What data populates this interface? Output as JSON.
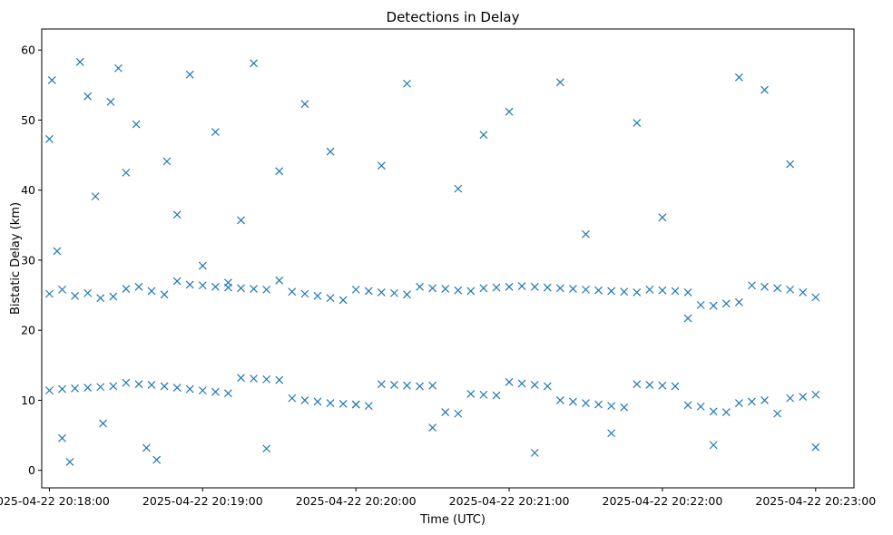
{
  "chart_data": {
    "type": "scatter",
    "title": "Detections in Delay",
    "xlabel": "Time (UTC)",
    "ylabel": "Bistatic Delay (km)",
    "marker": "x",
    "color": "#1f77b4",
    "xlim": [
      "2025-04-22 20:17:57",
      "2025-04-22 20:23:15"
    ],
    "ylim": [
      -2.5,
      63
    ],
    "xticks": [
      {
        "t": "2025-04-22 20:18:00",
        "label": "2025-04-22 20:18:00"
      },
      {
        "t": "2025-04-22 20:19:00",
        "label": "2025-04-22 20:19:00"
      },
      {
        "t": "2025-04-22 20:20:00",
        "label": "2025-04-22 20:20:00"
      },
      {
        "t": "2025-04-22 20:21:00",
        "label": "2025-04-22 20:21:00"
      },
      {
        "t": "2025-04-22 20:22:00",
        "label": "2025-04-22 20:22:00"
      },
      {
        "t": "2025-04-22 20:23:00",
        "label": "2025-04-22 20:23:00"
      }
    ],
    "yticks": [
      0,
      10,
      20,
      30,
      40,
      50,
      60
    ],
    "grid": false,
    "series": [
      {
        "name": "",
        "x": [
          "2025-04-22 20:18:00",
          "2025-04-22 20:18:01",
          "2025-04-22 20:18:03",
          "2025-04-22 20:18:05",
          "2025-04-22 20:18:08",
          "2025-04-22 20:18:12",
          "2025-04-22 20:18:15",
          "2025-04-22 20:18:18",
          "2025-04-22 20:18:21",
          "2025-04-22 20:18:24",
          "2025-04-22 20:18:27",
          "2025-04-22 20:18:30",
          "2025-04-22 20:18:34",
          "2025-04-22 20:18:38",
          "2025-04-22 20:18:42",
          "2025-04-22 20:18:46",
          "2025-04-22 20:18:50",
          "2025-04-22 20:18:55",
          "2025-04-22 20:19:00",
          "2025-04-22 20:19:05",
          "2025-04-22 20:19:10",
          "2025-04-22 20:19:15",
          "2025-04-22 20:19:20",
          "2025-04-22 20:19:25",
          "2025-04-22 20:19:30",
          "2025-04-22 20:19:40",
          "2025-04-22 20:19:50",
          "2025-04-22 20:20:00",
          "2025-04-22 20:20:10",
          "2025-04-22 20:20:20",
          "2025-04-22 20:20:30",
          "2025-04-22 20:20:40",
          "2025-04-22 20:20:50",
          "2025-04-22 20:21:00",
          "2025-04-22 20:21:10",
          "2025-04-22 20:21:20",
          "2025-04-22 20:21:30",
          "2025-04-22 20:21:40",
          "2025-04-22 20:21:50",
          "2025-04-22 20:22:00",
          "2025-04-22 20:22:10",
          "2025-04-22 20:22:20",
          "2025-04-22 20:22:30",
          "2025-04-22 20:22:40",
          "2025-04-22 20:22:50",
          "2025-04-22 20:23:00"
        ],
        "y": [
          47.3,
          55.7,
          31.3,
          4.6,
          1.2,
          58.3,
          53.4,
          39.1,
          6.7,
          52.6,
          57.4,
          42.5,
          49.4,
          3.2,
          1.5,
          44.1,
          36.5,
          56.5,
          29.2,
          48.3,
          26.8,
          35.7,
          58.1,
          3.1,
          42.7,
          52.3,
          45.5,
          9.4,
          43.5,
          55.2,
          6.1,
          40.2,
          47.9,
          51.2,
          2.5,
          55.4,
          33.7,
          5.3,
          49.6,
          36.1,
          21.7,
          3.6,
          56.1,
          54.3,
          43.7,
          3.3
        ]
      },
      {
        "name": "",
        "x": [
          "2025-04-22 20:18:00",
          "2025-04-22 20:18:05",
          "2025-04-22 20:18:10",
          "2025-04-22 20:18:15",
          "2025-04-22 20:18:20",
          "2025-04-22 20:18:25",
          "2025-04-22 20:18:30",
          "2025-04-22 20:18:35",
          "2025-04-22 20:18:40",
          "2025-04-22 20:18:45",
          "2025-04-22 20:18:50",
          "2025-04-22 20:18:55",
          "2025-04-22 20:19:00",
          "2025-04-22 20:19:05",
          "2025-04-22 20:19:10",
          "2025-04-22 20:19:15",
          "2025-04-22 20:19:20",
          "2025-04-22 20:19:25",
          "2025-04-22 20:19:30",
          "2025-04-22 20:19:35",
          "2025-04-22 20:19:40",
          "2025-04-22 20:19:45",
          "2025-04-22 20:19:50",
          "2025-04-22 20:19:55",
          "2025-04-22 20:20:00",
          "2025-04-22 20:20:05",
          "2025-04-22 20:20:10",
          "2025-04-22 20:20:15",
          "2025-04-22 20:20:20",
          "2025-04-22 20:20:25",
          "2025-04-22 20:20:30",
          "2025-04-22 20:20:35",
          "2025-04-22 20:20:40",
          "2025-04-22 20:20:45",
          "2025-04-22 20:20:50",
          "2025-04-22 20:20:55",
          "2025-04-22 20:21:00",
          "2025-04-22 20:21:05",
          "2025-04-22 20:21:10",
          "2025-04-22 20:21:15",
          "2025-04-22 20:21:20",
          "2025-04-22 20:21:25",
          "2025-04-22 20:21:30",
          "2025-04-22 20:21:35",
          "2025-04-22 20:21:40",
          "2025-04-22 20:21:45",
          "2025-04-22 20:21:50",
          "2025-04-22 20:21:55",
          "2025-04-22 20:22:00",
          "2025-04-22 20:22:05",
          "2025-04-22 20:22:10",
          "2025-04-22 20:22:15",
          "2025-04-22 20:22:20",
          "2025-04-22 20:22:25",
          "2025-04-22 20:22:30",
          "2025-04-22 20:22:35",
          "2025-04-22 20:22:40",
          "2025-04-22 20:22:45",
          "2025-04-22 20:22:50",
          "2025-04-22 20:22:55",
          "2025-04-22 20:23:00"
        ],
        "y": [
          25.2,
          25.8,
          24.9,
          25.3,
          24.6,
          24.8,
          25.9,
          26.2,
          25.6,
          25.1,
          27.0,
          26.5,
          26.4,
          26.2,
          26.1,
          26.0,
          25.9,
          25.8,
          27.1,
          25.5,
          25.2,
          24.9,
          24.6,
          24.3,
          25.8,
          25.6,
          25.4,
          25.3,
          25.1,
          26.2,
          26.0,
          25.9,
          25.7,
          25.6,
          26.0,
          26.1,
          26.2,
          26.3,
          26.2,
          26.1,
          26.0,
          25.9,
          25.8,
          25.7,
          25.6,
          25.5,
          25.4,
          25.8,
          25.7,
          25.6,
          25.4,
          23.6,
          23.5,
          23.8,
          24.0,
          26.4,
          26.2,
          26.0,
          25.8,
          25.4,
          24.7
        ]
      },
      {
        "name": "",
        "x": [
          "2025-04-22 20:18:00",
          "2025-04-22 20:18:05",
          "2025-04-22 20:18:10",
          "2025-04-22 20:18:15",
          "2025-04-22 20:18:20",
          "2025-04-22 20:18:25",
          "2025-04-22 20:18:30",
          "2025-04-22 20:18:35",
          "2025-04-22 20:18:40",
          "2025-04-22 20:18:45",
          "2025-04-22 20:18:50",
          "2025-04-22 20:18:55",
          "2025-04-22 20:19:00",
          "2025-04-22 20:19:05",
          "2025-04-22 20:19:10",
          "2025-04-22 20:19:15",
          "2025-04-22 20:19:20",
          "2025-04-22 20:19:25",
          "2025-04-22 20:19:30",
          "2025-04-22 20:19:35",
          "2025-04-22 20:19:40",
          "2025-04-22 20:19:45",
          "2025-04-22 20:19:50",
          "2025-04-22 20:19:55",
          "2025-04-22 20:20:00",
          "2025-04-22 20:20:05",
          "2025-04-22 20:20:10",
          "2025-04-22 20:20:15",
          "2025-04-22 20:20:20",
          "2025-04-22 20:20:25",
          "2025-04-22 20:20:30",
          "2025-04-22 20:20:35",
          "2025-04-22 20:20:40",
          "2025-04-22 20:20:45",
          "2025-04-22 20:20:50",
          "2025-04-22 20:20:55",
          "2025-04-22 20:21:00",
          "2025-04-22 20:21:05",
          "2025-04-22 20:21:10",
          "2025-04-22 20:21:15",
          "2025-04-22 20:21:20",
          "2025-04-22 20:21:25",
          "2025-04-22 20:21:30",
          "2025-04-22 20:21:35",
          "2025-04-22 20:21:40",
          "2025-04-22 20:21:45",
          "2025-04-22 20:21:50",
          "2025-04-22 20:21:55",
          "2025-04-22 20:22:00",
          "2025-04-22 20:22:05",
          "2025-04-22 20:22:10",
          "2025-04-22 20:22:15",
          "2025-04-22 20:22:20",
          "2025-04-22 20:22:25",
          "2025-04-22 20:22:30",
          "2025-04-22 20:22:35",
          "2025-04-22 20:22:40",
          "2025-04-22 20:22:45",
          "2025-04-22 20:22:50",
          "2025-04-22 20:22:55",
          "2025-04-22 20:23:00"
        ],
        "y": [
          11.4,
          11.6,
          11.7,
          11.8,
          11.9,
          12.0,
          12.5,
          12.3,
          12.2,
          12.0,
          11.8,
          11.6,
          11.4,
          11.2,
          11.0,
          13.2,
          13.1,
          13.0,
          12.9,
          10.3,
          10.0,
          9.8,
          9.6,
          9.5,
          9.4,
          9.2,
          12.3,
          12.2,
          12.1,
          12.0,
          12.1,
          8.3,
          8.1,
          10.9,
          10.8,
          10.7,
          12.6,
          12.4,
          12.2,
          12.0,
          10.0,
          9.8,
          9.6,
          9.4,
          9.2,
          9.0,
          12.3,
          12.2,
          12.1,
          12.0,
          9.3,
          9.1,
          8.4,
          8.3,
          9.6,
          9.8,
          10.0,
          8.1,
          10.3,
          10.5,
          10.8
        ]
      }
    ]
  }
}
